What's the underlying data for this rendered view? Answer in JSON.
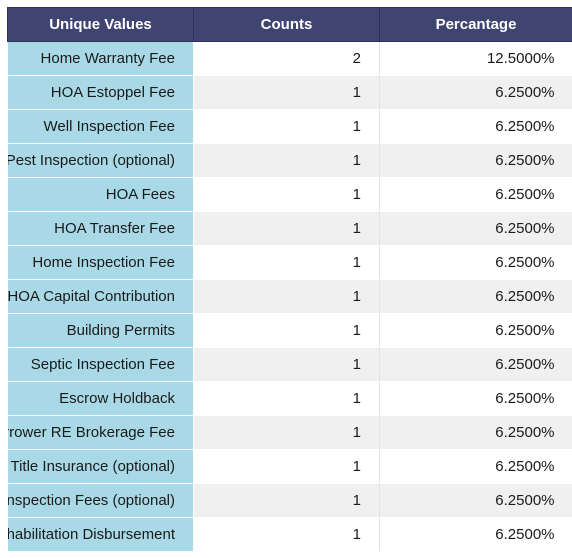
{
  "table": {
    "headers": [
      "Unique Values",
      "Counts",
      "Percantage"
    ],
    "rows": [
      {
        "value": "Home Warranty Fee",
        "count": "2",
        "percent": "12.5000%"
      },
      {
        "value": "HOA Estoppel Fee",
        "count": "1",
        "percent": "6.2500%"
      },
      {
        "value": "Well Inspection Fee",
        "count": "1",
        "percent": "6.2500%"
      },
      {
        "value": "Pest Inspection (optional)",
        "count": "1",
        "percent": "6.2500%"
      },
      {
        "value": "HOA Fees",
        "count": "1",
        "percent": "6.2500%"
      },
      {
        "value": "HOA Transfer Fee",
        "count": "1",
        "percent": "6.2500%"
      },
      {
        "value": "Home Inspection Fee",
        "count": "1",
        "percent": "6.2500%"
      },
      {
        "value": "HOA Capital Contribution",
        "count": "1",
        "percent": "6.2500%"
      },
      {
        "value": "Building Permits",
        "count": "1",
        "percent": "6.2500%"
      },
      {
        "value": "Septic Inspection Fee",
        "count": "1",
        "percent": "6.2500%"
      },
      {
        "value": "Escrow Holdback",
        "count": "1",
        "percent": "6.2500%"
      },
      {
        "value": "Borrower RE Brokerage Fee",
        "count": "1",
        "percent": "6.2500%"
      },
      {
        "value": "r's Title Insurance (optional)",
        "count": "1",
        "percent": "6.2500%"
      },
      {
        "value": "Inspection Fees (optional)",
        "count": "1",
        "percent": "6.2500%"
      },
      {
        "value": "Rehabilitation Disbursement",
        "count": "1",
        "percent": "6.2500%"
      }
    ]
  },
  "colors": {
    "header_bg": "#3f4470",
    "header_text": "#ffffff",
    "key_column_bg": "#a9d9e6",
    "row_stripe": "#f0f0f0"
  }
}
